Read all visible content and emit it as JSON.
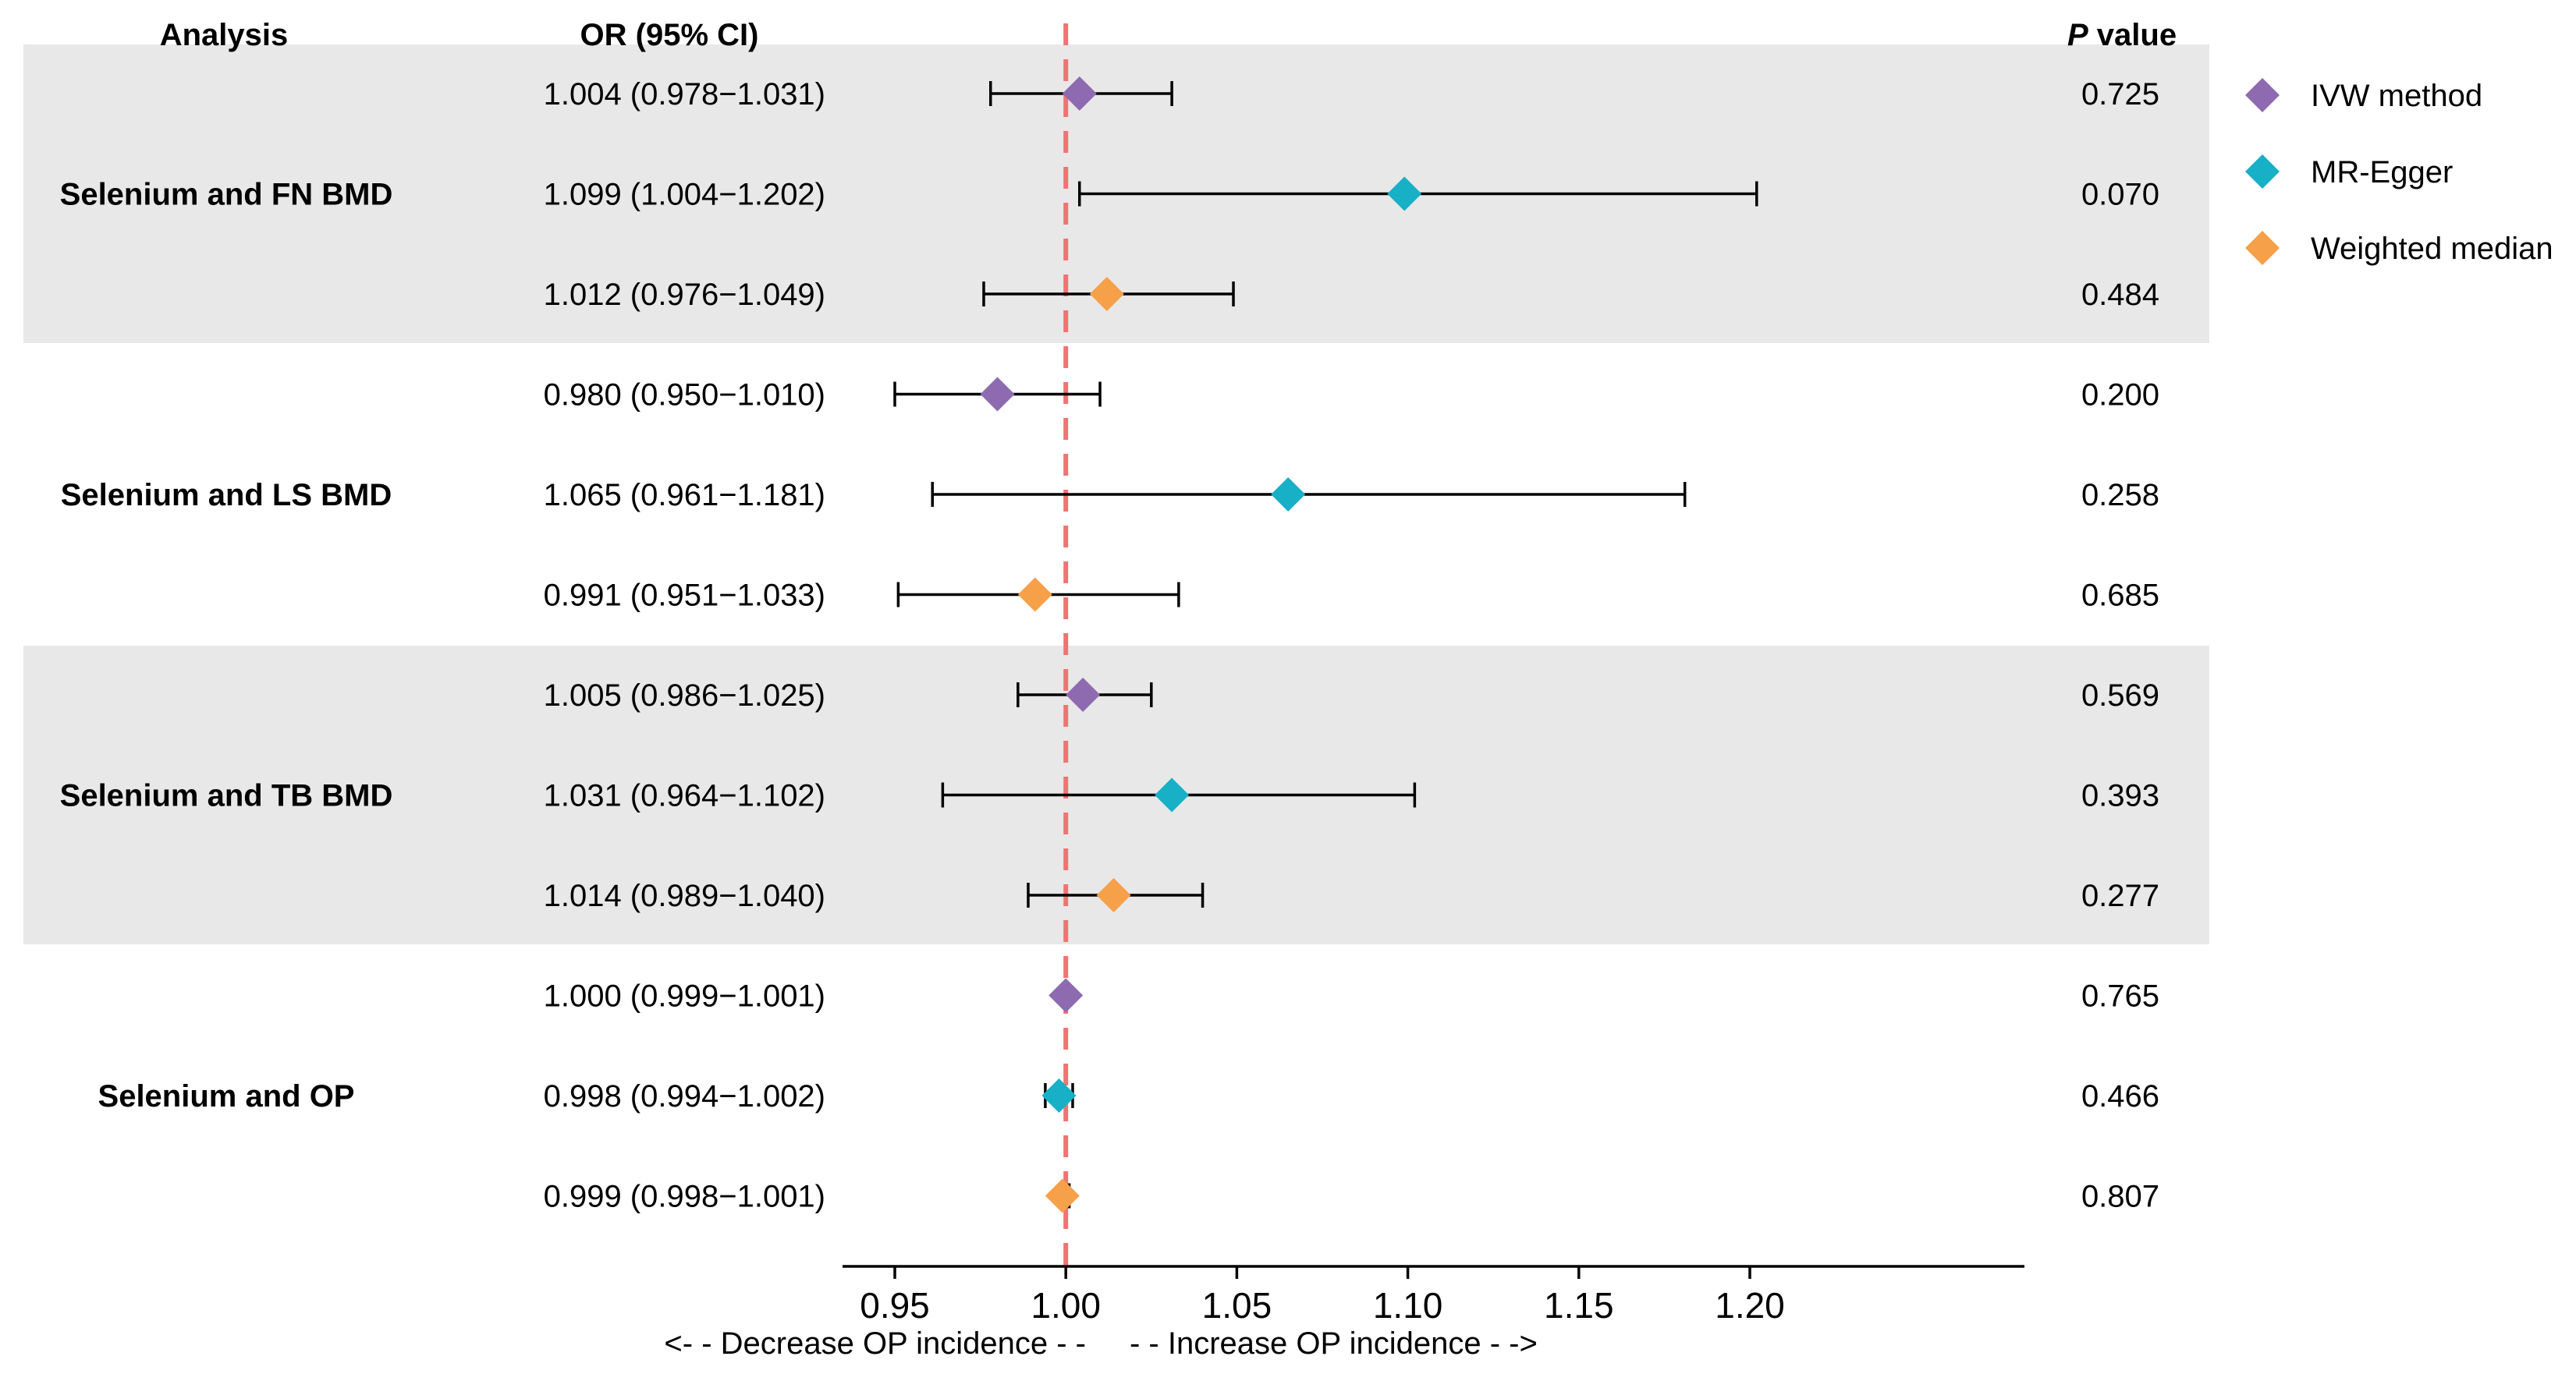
{
  "chart_data": {
    "type": "forest",
    "headers": {
      "analysis": "Analysis",
      "or": "OR (95% CI)",
      "p_italic": "P",
      "p_rest": " value"
    },
    "reference_value": 1.0,
    "xlim": [
      0.94,
      1.215
    ],
    "x_ticks": [
      {
        "value": 0.95,
        "label": "0.95"
      },
      {
        "value": 1.0,
        "label": "1.00"
      },
      {
        "value": 1.05,
        "label": "1.05"
      },
      {
        "value": 1.1,
        "label": "1.10"
      },
      {
        "value": 1.15,
        "label": "1.15"
      },
      {
        "value": 1.2,
        "label": "1.20"
      }
    ],
    "direction_labels": {
      "left": "<- - Decrease OP incidence - -",
      "right": "- - Increase OP incidence - ->"
    },
    "methods": [
      {
        "name": "IVW method",
        "color": "#8e6bb0"
      },
      {
        "name": "MR-Egger",
        "color": "#17b0c6"
      },
      {
        "name": "Weighted median",
        "color": "#f6a04a"
      }
    ],
    "groups": [
      {
        "label": "Selenium and FN BMD",
        "shaded": true,
        "rows": [
          {
            "method": 0,
            "or": 1.004,
            "lo": 0.978,
            "hi": 1.031,
            "ci_text": "1.004 (0.978−1.031)",
            "p": "0.725"
          },
          {
            "method": 1,
            "or": 1.099,
            "lo": 1.004,
            "hi": 1.202,
            "ci_text": "1.099 (1.004−1.202)",
            "p": "0.070"
          },
          {
            "method": 2,
            "or": 1.012,
            "lo": 0.976,
            "hi": 1.049,
            "ci_text": "1.012 (0.976−1.049)",
            "p": "0.484"
          }
        ]
      },
      {
        "label": "Selenium and LS BMD",
        "shaded": false,
        "rows": [
          {
            "method": 0,
            "or": 0.98,
            "lo": 0.95,
            "hi": 1.01,
            "ci_text": "0.980 (0.950−1.010)",
            "p": "0.200"
          },
          {
            "method": 1,
            "or": 1.065,
            "lo": 0.961,
            "hi": 1.181,
            "ci_text": "1.065 (0.961−1.181)",
            "p": "0.258"
          },
          {
            "method": 2,
            "or": 0.991,
            "lo": 0.951,
            "hi": 1.033,
            "ci_text": "0.991 (0.951−1.033)",
            "p": "0.685"
          }
        ]
      },
      {
        "label": "Selenium and TB BMD",
        "shaded": true,
        "rows": [
          {
            "method": 0,
            "or": 1.005,
            "lo": 0.986,
            "hi": 1.025,
            "ci_text": "1.005 (0.986−1.025)",
            "p": "0.569"
          },
          {
            "method": 1,
            "or": 1.031,
            "lo": 0.964,
            "hi": 1.102,
            "ci_text": "1.031 (0.964−1.102)",
            "p": "0.393"
          },
          {
            "method": 2,
            "or": 1.014,
            "lo": 0.989,
            "hi": 1.04,
            "ci_text": "1.014 (0.989−1.040)",
            "p": "0.277"
          }
        ]
      },
      {
        "label": "Selenium and OP",
        "shaded": false,
        "rows": [
          {
            "method": 0,
            "or": 1.0,
            "lo": 0.999,
            "hi": 1.001,
            "ci_text": "1.000 (0.999−1.001)",
            "p": "0.765"
          },
          {
            "method": 1,
            "or": 0.998,
            "lo": 0.994,
            "hi": 1.002,
            "ci_text": "0.998 (0.994−1.002)",
            "p": "0.466"
          },
          {
            "method": 2,
            "or": 0.999,
            "lo": 0.998,
            "hi": 1.001,
            "ci_text": "0.999 (0.998−1.001)",
            "p": "0.807"
          }
        ]
      }
    ]
  }
}
